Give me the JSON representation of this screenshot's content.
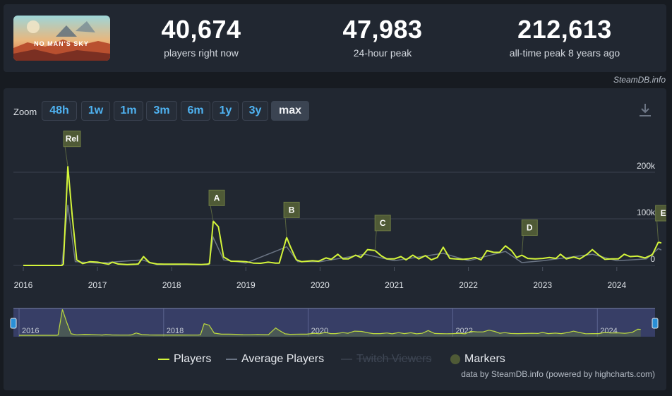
{
  "stats": [
    {
      "value": "40,674",
      "label": "players right now"
    },
    {
      "value": "47,983",
      "label": "24-hour peak"
    },
    {
      "value": "212,613",
      "label": "all-time peak 8 years ago"
    }
  ],
  "banner": {
    "title": "NO MAN'S SKY"
  },
  "credit_top": "SteamDB.info",
  "zoom": {
    "label": "Zoom",
    "options": [
      "48h",
      "1w",
      "1m",
      "3m",
      "6m",
      "1y",
      "3y",
      "max"
    ],
    "active": "max"
  },
  "legend": {
    "players": "Players",
    "average": "Average Players",
    "twitch": "Twitch Viewers",
    "markers": "Markers"
  },
  "credit_bottom": "data by SteamDB.info (powered by highcharts.com)",
  "colors": {
    "players": "#d4f53a",
    "average": "#6b7585",
    "marker_bg": "#4f5a36",
    "navigator_fill": "#3b4370",
    "background": "#212731"
  },
  "chart_data": {
    "type": "line",
    "x_unit": "year",
    "xlim": [
      2016,
      2024.72
    ],
    "ylim": [
      0,
      220000
    ],
    "x_ticks": [
      "2016",
      "2017",
      "2018",
      "2019",
      "2020",
      "2021",
      "2022",
      "2023",
      "2024"
    ],
    "y_ticks": [
      {
        "value": 0,
        "label": "0"
      },
      {
        "value": 100000,
        "label": "100k"
      },
      {
        "value": 200000,
        "label": "200k"
      }
    ],
    "series": [
      {
        "name": "Players",
        "points": [
          [
            2016.0,
            0
          ],
          [
            2016.44,
            0
          ],
          [
            2016.52,
            0
          ],
          [
            2016.54,
            3000
          ],
          [
            2016.6,
            212613
          ],
          [
            2016.66,
            105000
          ],
          [
            2016.72,
            12000
          ],
          [
            2016.8,
            4000
          ],
          [
            2016.9,
            8000
          ],
          [
            2017.0,
            7000
          ],
          [
            2017.1,
            4000
          ],
          [
            2017.15,
            2500
          ],
          [
            2017.2,
            7000
          ],
          [
            2017.28,
            3000
          ],
          [
            2017.4,
            2000
          ],
          [
            2017.52,
            2500
          ],
          [
            2017.55,
            3000
          ],
          [
            2017.62,
            19000
          ],
          [
            2017.7,
            6000
          ],
          [
            2017.8,
            3000
          ],
          [
            2017.9,
            2500
          ],
          [
            2018.0,
            2500
          ],
          [
            2018.2,
            2500
          ],
          [
            2018.4,
            2000
          ],
          [
            2018.48,
            2500
          ],
          [
            2018.51,
            4000
          ],
          [
            2018.56,
            95000
          ],
          [
            2018.63,
            83000
          ],
          [
            2018.7,
            18000
          ],
          [
            2018.8,
            9000
          ],
          [
            2018.9,
            9000
          ],
          [
            2019.0,
            8000
          ],
          [
            2019.1,
            5000
          ],
          [
            2019.2,
            4500
          ],
          [
            2019.3,
            7000
          ],
          [
            2019.4,
            5000
          ],
          [
            2019.45,
            5000
          ],
          [
            2019.55,
            60000
          ],
          [
            2019.6,
            40000
          ],
          [
            2019.68,
            12000
          ],
          [
            2019.75,
            8000
          ],
          [
            2019.9,
            10000
          ],
          [
            2019.98,
            9000
          ],
          [
            2020.08,
            16000
          ],
          [
            2020.15,
            13000
          ],
          [
            2020.24,
            24000
          ],
          [
            2020.31,
            14000
          ],
          [
            2020.38,
            14000
          ],
          [
            2020.48,
            22000
          ],
          [
            2020.55,
            17000
          ],
          [
            2020.64,
            34000
          ],
          [
            2020.74,
            32000
          ],
          [
            2020.83,
            20000
          ],
          [
            2020.9,
            14000
          ],
          [
            2021.0,
            14000
          ],
          [
            2021.09,
            19000
          ],
          [
            2021.16,
            12000
          ],
          [
            2021.25,
            22000
          ],
          [
            2021.33,
            14000
          ],
          [
            2021.42,
            21000
          ],
          [
            2021.5,
            12000
          ],
          [
            2021.58,
            17000
          ],
          [
            2021.66,
            39000
          ],
          [
            2021.75,
            15000
          ],
          [
            2021.82,
            14000
          ],
          [
            2021.92,
            13000
          ],
          [
            2022.0,
            14000
          ],
          [
            2022.09,
            17000
          ],
          [
            2022.17,
            12000
          ],
          [
            2022.25,
            32000
          ],
          [
            2022.34,
            28000
          ],
          [
            2022.42,
            28000
          ],
          [
            2022.5,
            42000
          ],
          [
            2022.58,
            32000
          ],
          [
            2022.65,
            17000
          ],
          [
            2022.72,
            22000
          ],
          [
            2022.8,
            15000
          ],
          [
            2022.9,
            14000
          ],
          [
            2023.0,
            15000
          ],
          [
            2023.09,
            17000
          ],
          [
            2023.18,
            15000
          ],
          [
            2023.24,
            24000
          ],
          [
            2023.32,
            14000
          ],
          [
            2023.42,
            18000
          ],
          [
            2023.5,
            14000
          ],
          [
            2023.6,
            24000
          ],
          [
            2023.67,
            34000
          ],
          [
            2023.75,
            23000
          ],
          [
            2023.84,
            13000
          ],
          [
            2023.93,
            14000
          ],
          [
            2024.02,
            14000
          ],
          [
            2024.1,
            24000
          ],
          [
            2024.18,
            19000
          ],
          [
            2024.28,
            20000
          ],
          [
            2024.38,
            16000
          ],
          [
            2024.48,
            23000
          ],
          [
            2024.56,
            50000
          ],
          [
            2024.6,
            47983
          ]
        ]
      },
      {
        "name": "Average Players",
        "points": [
          [
            2016.0,
            0
          ],
          [
            2016.52,
            0
          ],
          [
            2016.6,
            130000
          ],
          [
            2016.7,
            8000
          ],
          [
            2017.0,
            5000
          ],
          [
            2017.6,
            12000
          ],
          [
            2017.8,
            2000
          ],
          [
            2018.5,
            2000
          ],
          [
            2018.56,
            60000
          ],
          [
            2018.7,
            12000
          ],
          [
            2019.0,
            5000
          ],
          [
            2019.55,
            40000
          ],
          [
            2019.7,
            8000
          ],
          [
            2020.0,
            8000
          ],
          [
            2020.6,
            24000
          ],
          [
            2021.0,
            10000
          ],
          [
            2021.66,
            26000
          ],
          [
            2022.0,
            10000
          ],
          [
            2022.5,
            30000
          ],
          [
            2022.72,
            6000
          ],
          [
            2023.0,
            10000
          ],
          [
            2023.67,
            24000
          ],
          [
            2024.0,
            10000
          ],
          [
            2024.4,
            14000
          ],
          [
            2024.56,
            36000
          ],
          [
            2024.6,
            33000
          ]
        ]
      }
    ],
    "markers": [
      {
        "label": "Rel",
        "x": 2016.6
      },
      {
        "label": "A",
        "x": 2018.56
      },
      {
        "label": "B",
        "x": 2019.55
      },
      {
        "label": "C",
        "x": 2020.74
      },
      {
        "label": "D",
        "x": 2022.72
      },
      {
        "label": "E",
        "x": 2024.56
      }
    ],
    "navigator_ticks": [
      "2016",
      "2018",
      "2020",
      "2022",
      "2024"
    ]
  }
}
